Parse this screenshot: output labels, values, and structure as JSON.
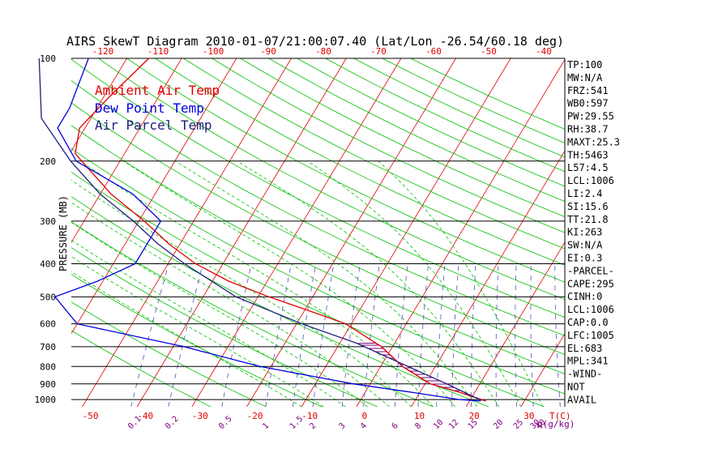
{
  "chart_data": {
    "type": "line",
    "title": "AIRS SkewT Diagram 2010-01-07/21:00:07.40 (Lat/Lon -26.54/60.18 deg)",
    "ylabel": "PRESSURE (MB)",
    "xlabel": "T(C)",
    "mixing_label": "q(g/kg)",
    "y_scale": "log",
    "ylim": [
      1050,
      100
    ],
    "xlim_bottom": [
      -52,
      38
    ],
    "pressure_ticks": [
      100,
      200,
      300,
      400,
      500,
      600,
      700,
      800,
      900,
      1000
    ],
    "temp_ticks_bottom": [
      -50,
      -40,
      -30,
      -20,
      -10,
      0,
      10,
      20,
      30
    ],
    "temp_ticks_top": [
      -120,
      -110,
      -100,
      -90,
      -80,
      -70,
      -60,
      -50,
      -40
    ],
    "mixing_ratio_labels": [
      "0.1",
      "0.2",
      "0.5",
      "1",
      "1.5",
      "2",
      "3",
      "4",
      "6",
      "8",
      "10",
      "12",
      "15",
      "20",
      "25",
      "30",
      "40"
    ],
    "legend": [
      "Ambient Air Temp",
      "Dew Point Temp",
      "Air Parcel Temp"
    ],
    "legend_position": "top-left",
    "colors": {
      "ambient": "#e00000",
      "dewpoint": "#0000e0",
      "parcel": "#202080",
      "isotherm": "#e00000",
      "dry_adiabat": "#00c000",
      "moist_adiabat": "#00c000",
      "mixing_ratio": "#5050c0",
      "cape_fill": "#800080"
    },
    "series": [
      {
        "name": "Ambient Air Temp",
        "points": [
          [
            100,
            -76
          ],
          [
            130,
            -79
          ],
          [
            160,
            -81
          ],
          [
            190,
            -79
          ],
          [
            200,
            -77
          ],
          [
            250,
            -68
          ],
          [
            300,
            -59
          ],
          [
            350,
            -52
          ],
          [
            400,
            -45
          ],
          [
            450,
            -37
          ],
          [
            500,
            -28
          ],
          [
            550,
            -19
          ],
          [
            600,
            -11
          ],
          [
            700,
            -2
          ],
          [
            800,
            4
          ],
          [
            900,
            11
          ],
          [
            950,
            17
          ],
          [
            1000,
            22
          ],
          [
            1010,
            23
          ]
        ]
      },
      {
        "name": "Dew Point Temp",
        "points": [
          [
            100,
            -87
          ],
          [
            140,
            -85
          ],
          [
            160,
            -85
          ],
          [
            200,
            -78
          ],
          [
            250,
            -64
          ],
          [
            300,
            -56
          ],
          [
            350,
            -56
          ],
          [
            400,
            -56
          ],
          [
            450,
            -61
          ],
          [
            500,
            -67
          ],
          [
            600,
            -60
          ],
          [
            700,
            -38
          ],
          [
            800,
            -22
          ],
          [
            900,
            -3
          ],
          [
            950,
            8
          ],
          [
            1000,
            18
          ],
          [
            1010,
            22
          ]
        ]
      },
      {
        "name": "Air Parcel Temp",
        "points": [
          [
            100,
            -96
          ],
          [
            150,
            -89
          ],
          [
            200,
            -79
          ],
          [
            250,
            -70
          ],
          [
            300,
            -61
          ],
          [
            350,
            -54
          ],
          [
            400,
            -47
          ],
          [
            500,
            -34
          ],
          [
            600,
            -19
          ],
          [
            683,
            -7
          ],
          [
            800,
            5
          ],
          [
            900,
            14
          ],
          [
            1005,
            22
          ]
        ]
      }
    ],
    "indices": [
      "TP:100",
      "MW:N/A",
      "FRZ:541",
      "WB0:597",
      "PW:29.55",
      "RH:38.7",
      "MAXT:25.3",
      "TH:5463",
      "L57:4.5",
      "LCL:1006",
      "LI:2.4",
      "SI:15.6",
      "TT:21.8",
      "KI:263",
      "SW:N/A",
      "EI:0.3",
      "-PARCEL-",
      "CAPE:295",
      "CINH:0",
      "LCL:1006",
      "CAP:0.0",
      "LFC:1005",
      "EL:683",
      "MPL:341",
      "-WIND-",
      "NOT",
      "AVAIL"
    ]
  }
}
